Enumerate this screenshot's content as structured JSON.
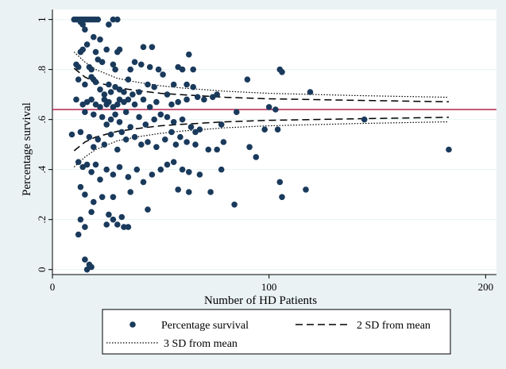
{
  "chart_data": {
    "type": "scatter",
    "xlabel": "Number of HD Patients",
    "ylabel": "Percentage survival",
    "xlim": [
      0,
      205
    ],
    "ylim": [
      -0.02,
      1.04
    ],
    "xticks": [
      0,
      100,
      200
    ],
    "xtick_labels": [
      "0",
      "100",
      "200"
    ],
    "yticks": [
      0,
      0.2,
      0.4,
      0.6,
      0.8,
      1
    ],
    "ytick_labels": [
      "0",
      ".2",
      ".4",
      ".6",
      ".8",
      "1"
    ],
    "grid": "horizontal",
    "legend_position": "bottom",
    "reference_line": {
      "y": 0.64,
      "color": "#b5254f"
    },
    "colors": {
      "background": "#eaf2f3",
      "plot_area": "#ffffff",
      "markers": "#1a3a5c",
      "lines": "#000000"
    },
    "series": [
      {
        "name": "Percentage survival",
        "style": "marker",
        "points": [
          [
            10,
            1
          ],
          [
            11,
            1
          ],
          [
            12,
            1
          ],
          [
            13,
            1
          ],
          [
            14,
            1
          ],
          [
            15,
            1
          ],
          [
            16,
            1
          ],
          [
            17,
            1
          ],
          [
            18,
            1
          ],
          [
            19,
            1
          ],
          [
            20,
            1
          ],
          [
            21,
            1
          ],
          [
            28,
            1
          ],
          [
            30,
            1
          ],
          [
            14,
            0.98
          ],
          [
            15,
            0.96
          ],
          [
            13,
            0.99
          ],
          [
            26,
            0.98
          ],
          [
            19,
            0.93
          ],
          [
            22,
            0.92
          ],
          [
            16,
            0.9
          ],
          [
            14,
            0.88
          ],
          [
            13,
            0.87
          ],
          [
            20,
            0.87
          ],
          [
            25,
            0.88
          ],
          [
            30,
            0.87
          ],
          [
            31,
            0.88
          ],
          [
            42,
            0.89
          ],
          [
            46,
            0.89
          ],
          [
            63,
            0.86
          ],
          [
            11,
            0.82
          ],
          [
            12,
            0.81
          ],
          [
            17,
            0.81
          ],
          [
            18,
            0.8
          ],
          [
            21,
            0.84
          ],
          [
            23,
            0.83
          ],
          [
            28,
            0.82
          ],
          [
            29,
            0.8
          ],
          [
            36,
            0.8
          ],
          [
            38,
            0.83
          ],
          [
            41,
            0.82
          ],
          [
            45,
            0.81
          ],
          [
            49,
            0.8
          ],
          [
            58,
            0.81
          ],
          [
            60,
            0.8
          ],
          [
            65,
            0.8
          ],
          [
            105,
            0.8
          ],
          [
            106,
            0.79
          ],
          [
            12,
            0.76
          ],
          [
            15,
            0.74
          ],
          [
            18,
            0.77
          ],
          [
            19,
            0.76
          ],
          [
            20,
            0.75
          ],
          [
            22,
            0.72
          ],
          [
            24,
            0.7
          ],
          [
            26,
            0.74
          ],
          [
            27,
            0.71
          ],
          [
            29,
            0.73
          ],
          [
            31,
            0.72
          ],
          [
            33,
            0.71
          ],
          [
            35,
            0.76
          ],
          [
            37,
            0.7
          ],
          [
            40,
            0.71
          ],
          [
            44,
            0.74
          ],
          [
            47,
            0.73
          ],
          [
            51,
            0.78
          ],
          [
            53,
            0.7
          ],
          [
            56,
            0.74
          ],
          [
            62,
            0.74
          ],
          [
            65,
            0.73
          ],
          [
            90,
            0.76
          ],
          [
            119,
            0.71
          ],
          [
            11,
            0.68
          ],
          [
            14,
            0.66
          ],
          [
            16,
            0.67
          ],
          [
            18,
            0.68
          ],
          [
            20,
            0.66
          ],
          [
            22,
            0.65
          ],
          [
            24,
            0.68
          ],
          [
            25,
            0.66
          ],
          [
            26,
            0.67
          ],
          [
            28,
            0.65
          ],
          [
            30,
            0.66
          ],
          [
            31,
            0.68
          ],
          [
            33,
            0.67
          ],
          [
            35,
            0.68
          ],
          [
            38,
            0.66
          ],
          [
            42,
            0.68
          ],
          [
            45,
            0.65
          ],
          [
            48,
            0.67
          ],
          [
            55,
            0.66
          ],
          [
            58,
            0.67
          ],
          [
            62,
            0.68
          ],
          [
            67,
            0.69
          ],
          [
            70,
            0.68
          ],
          [
            74,
            0.69
          ],
          [
            76,
            0.7
          ],
          [
            100,
            0.65
          ],
          [
            103,
            0.64
          ],
          [
            15,
            0.63
          ],
          [
            19,
            0.62
          ],
          [
            23,
            0.61
          ],
          [
            25,
            0.58
          ],
          [
            27,
            0.6
          ],
          [
            29,
            0.62
          ],
          [
            31,
            0.59
          ],
          [
            34,
            0.63
          ],
          [
            36,
            0.57
          ],
          [
            40,
            0.61
          ],
          [
            43,
            0.58
          ],
          [
            47,
            0.6
          ],
          [
            50,
            0.62
          ],
          [
            53,
            0.61
          ],
          [
            56,
            0.59
          ],
          [
            60,
            0.6
          ],
          [
            64,
            0.57
          ],
          [
            66,
            0.55
          ],
          [
            68,
            0.56
          ],
          [
            78,
            0.58
          ],
          [
            85,
            0.63
          ],
          [
            98,
            0.56
          ],
          [
            104,
            0.56
          ],
          [
            144,
            0.6
          ],
          [
            9,
            0.54
          ],
          [
            13,
            0.55
          ],
          [
            17,
            0.53
          ],
          [
            19,
            0.49
          ],
          [
            21,
            0.52
          ],
          [
            24,
            0.5
          ],
          [
            27,
            0.54
          ],
          [
            30,
            0.48
          ],
          [
            32,
            0.55
          ],
          [
            34,
            0.52
          ],
          [
            38,
            0.53
          ],
          [
            41,
            0.5
          ],
          [
            44,
            0.51
          ],
          [
            48,
            0.49
          ],
          [
            52,
            0.52
          ],
          [
            55,
            0.55
          ],
          [
            57,
            0.5
          ],
          [
            59,
            0.53
          ],
          [
            62,
            0.51
          ],
          [
            66,
            0.5
          ],
          [
            72,
            0.48
          ],
          [
            76,
            0.48
          ],
          [
            79,
            0.51
          ],
          [
            91,
            0.49
          ],
          [
            94,
            0.45
          ],
          [
            12,
            0.43
          ],
          [
            14,
            0.41
          ],
          [
            16,
            0.42
          ],
          [
            18,
            0.39
          ],
          [
            20,
            0.42
          ],
          [
            22,
            0.36
          ],
          [
            25,
            0.4
          ],
          [
            28,
            0.38
          ],
          [
            31,
            0.41
          ],
          [
            35,
            0.37
          ],
          [
            39,
            0.4
          ],
          [
            42,
            0.35
          ],
          [
            46,
            0.38
          ],
          [
            50,
            0.4
          ],
          [
            53,
            0.42
          ],
          [
            56,
            0.43
          ],
          [
            60,
            0.4
          ],
          [
            63,
            0.39
          ],
          [
            68,
            0.38
          ],
          [
            73,
            0.31
          ],
          [
            78,
            0.4
          ],
          [
            106,
            0.29
          ],
          [
            105,
            0.35
          ],
          [
            117,
            0.32
          ],
          [
            183,
            0.48
          ],
          [
            13,
            0.33
          ],
          [
            15,
            0.3
          ],
          [
            19,
            0.27
          ],
          [
            23,
            0.29
          ],
          [
            26,
            0.22
          ],
          [
            28,
            0.29
          ],
          [
            32,
            0.21
          ],
          [
            36,
            0.31
          ],
          [
            44,
            0.24
          ],
          [
            58,
            0.32
          ],
          [
            63,
            0.31
          ],
          [
            84,
            0.26
          ],
          [
            13,
            0.2
          ],
          [
            15,
            0.17
          ],
          [
            18,
            0.23
          ],
          [
            25,
            0.18
          ],
          [
            28,
            0.2
          ],
          [
            30,
            0.18
          ],
          [
            33,
            0.17
          ],
          [
            35,
            0.17
          ],
          [
            12,
            0.14
          ],
          [
            15,
            0.04
          ],
          [
            17,
            0.02
          ],
          [
            18,
            0.01
          ],
          [
            16,
            0.0
          ]
        ]
      },
      {
        "name": "2 SD from mean",
        "style": "dashed",
        "upper": [
          [
            10,
            0.805
          ],
          [
            15,
            0.77
          ],
          [
            20,
            0.75
          ],
          [
            30,
            0.727
          ],
          [
            40,
            0.715
          ],
          [
            50,
            0.705
          ],
          [
            60,
            0.699
          ],
          [
            80,
            0.689
          ],
          [
            100,
            0.683
          ],
          [
            140,
            0.677
          ],
          [
            183,
            0.671
          ]
        ],
        "lower": [
          [
            10,
            0.475
          ],
          [
            15,
            0.51
          ],
          [
            20,
            0.53
          ],
          [
            30,
            0.553
          ],
          [
            40,
            0.565
          ],
          [
            50,
            0.575
          ],
          [
            60,
            0.581
          ],
          [
            80,
            0.591
          ],
          [
            100,
            0.597
          ],
          [
            140,
            0.603
          ],
          [
            183,
            0.609
          ]
        ]
      },
      {
        "name": "3 SD from mean",
        "style": "dotted",
        "upper": [
          [
            10,
            0.87
          ],
          [
            15,
            0.83
          ],
          [
            20,
            0.8
          ],
          [
            30,
            0.765
          ],
          [
            40,
            0.748
          ],
          [
            50,
            0.735
          ],
          [
            60,
            0.726
          ],
          [
            80,
            0.713
          ],
          [
            100,
            0.705
          ],
          [
            140,
            0.696
          ],
          [
            183,
            0.689
          ]
        ],
        "lower": [
          [
            10,
            0.41
          ],
          [
            15,
            0.45
          ],
          [
            20,
            0.48
          ],
          [
            30,
            0.515
          ],
          [
            40,
            0.532
          ],
          [
            50,
            0.545
          ],
          [
            60,
            0.554
          ],
          [
            80,
            0.567
          ],
          [
            100,
            0.575
          ],
          [
            140,
            0.584
          ],
          [
            183,
            0.591
          ]
        ]
      }
    ]
  }
}
